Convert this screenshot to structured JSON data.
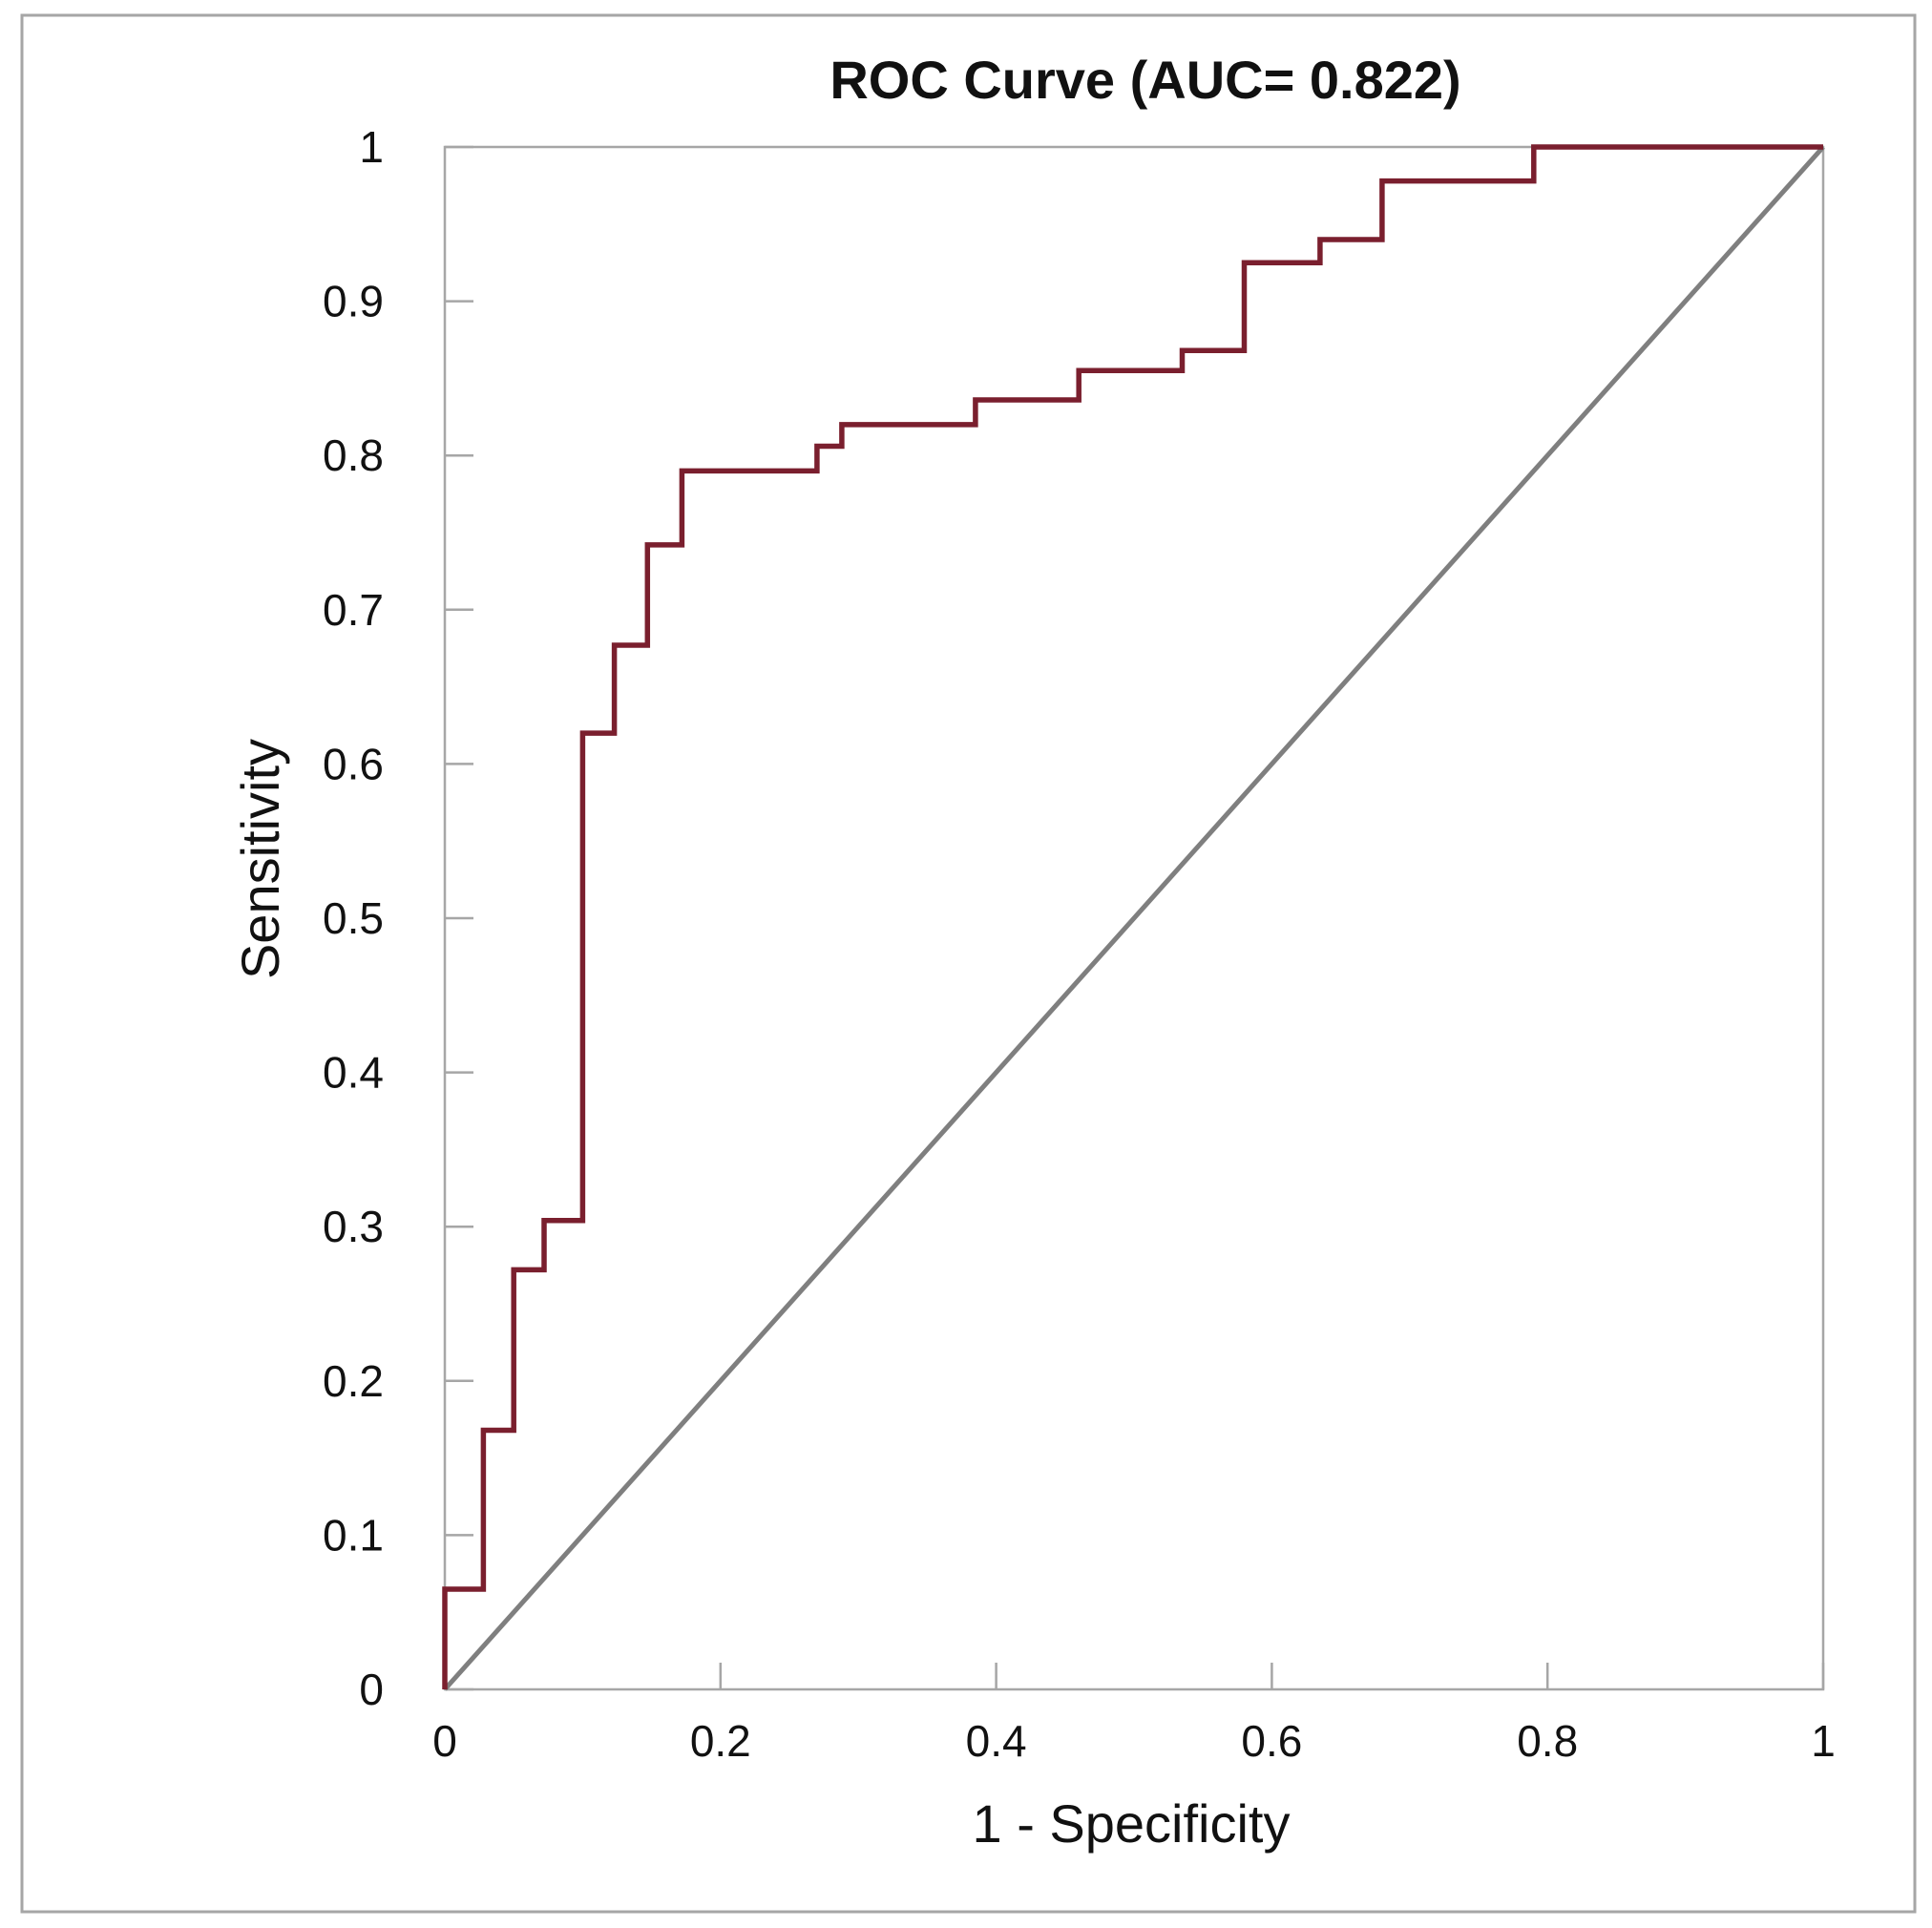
{
  "chart_data": {
    "type": "line",
    "title": "ROC Curve (AUC= 0.822)",
    "xlabel": "1 - Specificity",
    "ylabel": "Sensitivity",
    "xlim": [
      0,
      1
    ],
    "ylim": [
      0,
      1
    ],
    "x_ticks": [
      "0",
      "0.2",
      "0.4",
      "0.6",
      "0.8",
      "1"
    ],
    "y_ticks": [
      "0",
      "0.1",
      "0.2",
      "0.3",
      "0.4",
      "0.5",
      "0.6",
      "0.7",
      "0.8",
      "0.9",
      "1"
    ],
    "grid": false,
    "series": [
      {
        "name": "ROC curve",
        "color": "#7a1f2e",
        "x": [
          0,
          0,
          0.028,
          0.028,
          0.05,
          0.05,
          0.072,
          0.072,
          0.1,
          0.1,
          0.123,
          0.123,
          0.147,
          0.147,
          0.172,
          0.172,
          0.27,
          0.27,
          0.288,
          0.288,
          0.385,
          0.385,
          0.46,
          0.46,
          0.535,
          0.535,
          0.58,
          0.58,
          0.635,
          0.635,
          0.68,
          0.68,
          0.79,
          0.79,
          1
        ],
        "y": [
          0,
          0.065,
          0.065,
          0.168,
          0.168,
          0.272,
          0.272,
          0.304,
          0.304,
          0.62,
          0.62,
          0.677,
          0.677,
          0.742,
          0.742,
          0.79,
          0.79,
          0.806,
          0.806,
          0.82,
          0.82,
          0.836,
          0.836,
          0.855,
          0.855,
          0.868,
          0.868,
          0.925,
          0.925,
          0.94,
          0.94,
          0.978,
          0.978,
          1,
          1
        ]
      },
      {
        "name": "Reference line",
        "color": "#7f7f7f",
        "x": [
          0,
          1
        ],
        "y": [
          0,
          1
        ]
      }
    ]
  }
}
